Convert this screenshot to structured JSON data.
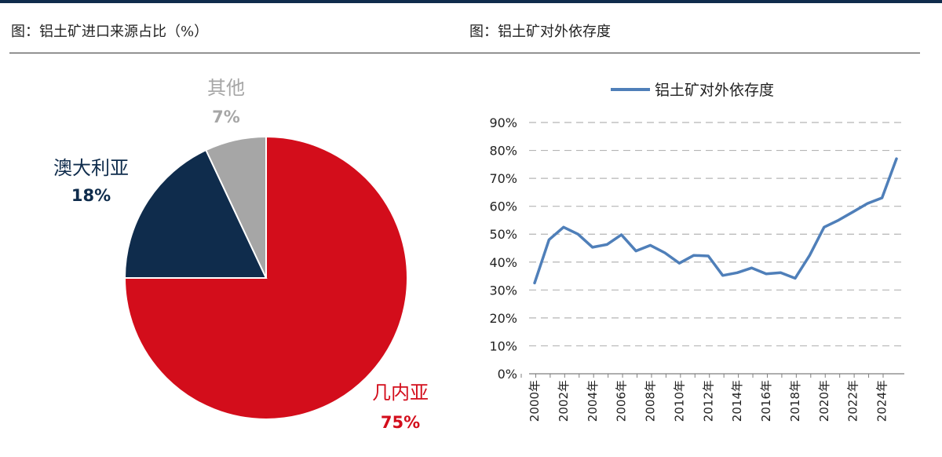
{
  "figures": {
    "left_title": "图：铝土矿进口来源占比（%）",
    "right_title": "图：铝土矿对外依存度"
  },
  "colors": {
    "header_bar": "#0f2c4c",
    "guinea": "#d30d1b",
    "australia": "#0f2c4c",
    "other": "#a6a6a6",
    "line": "#4f7fb9",
    "grid": "#b5b5b5"
  },
  "chart_data": [
    {
      "type": "pie",
      "title": "图：铝土矿进口来源占比（%）",
      "slices": [
        {
          "name": "几内亚",
          "value": 75,
          "value_label": "75%"
        },
        {
          "name": "澳大利亚",
          "value": 18,
          "value_label": "18%"
        },
        {
          "name": "其他",
          "value": 7,
          "value_label": "7%"
        }
      ]
    },
    {
      "type": "line",
      "title": "图：铝土矿对外依存度",
      "legend": "top",
      "grid": true,
      "ylim": [
        0,
        90
      ],
      "y_ticks": [
        "0%",
        "10%",
        "20%",
        "30%",
        "40%",
        "50%",
        "60%",
        "70%",
        "80%",
        "90%"
      ],
      "x_ticks": [
        "2000年",
        "2002年",
        "2004年",
        "2006年",
        "2008年",
        "2010年",
        "2012年",
        "2014年",
        "2016年",
        "2018年",
        "2020年",
        "2022年",
        "2024年"
      ],
      "series": [
        {
          "name": "铝土矿对外依存度",
          "x": [
            2000,
            2001,
            2002,
            2003,
            2004,
            2005,
            2006,
            2007,
            2008,
            2009,
            2010,
            2011,
            2012,
            2013,
            2014,
            2015,
            2016,
            2017,
            2018,
            2019,
            2020,
            2021,
            2022,
            2023,
            2024,
            2025
          ],
          "values": [
            32.5,
            48,
            52.5,
            50,
            45.3,
            46.3,
            49.8,
            44,
            46,
            43.3,
            39.6,
            42.4,
            42.2,
            35.2,
            36.2,
            37.9,
            35.8,
            36.2,
            34.2,
            42.4,
            52.5,
            55,
            58,
            61,
            63,
            77
          ]
        }
      ]
    }
  ]
}
